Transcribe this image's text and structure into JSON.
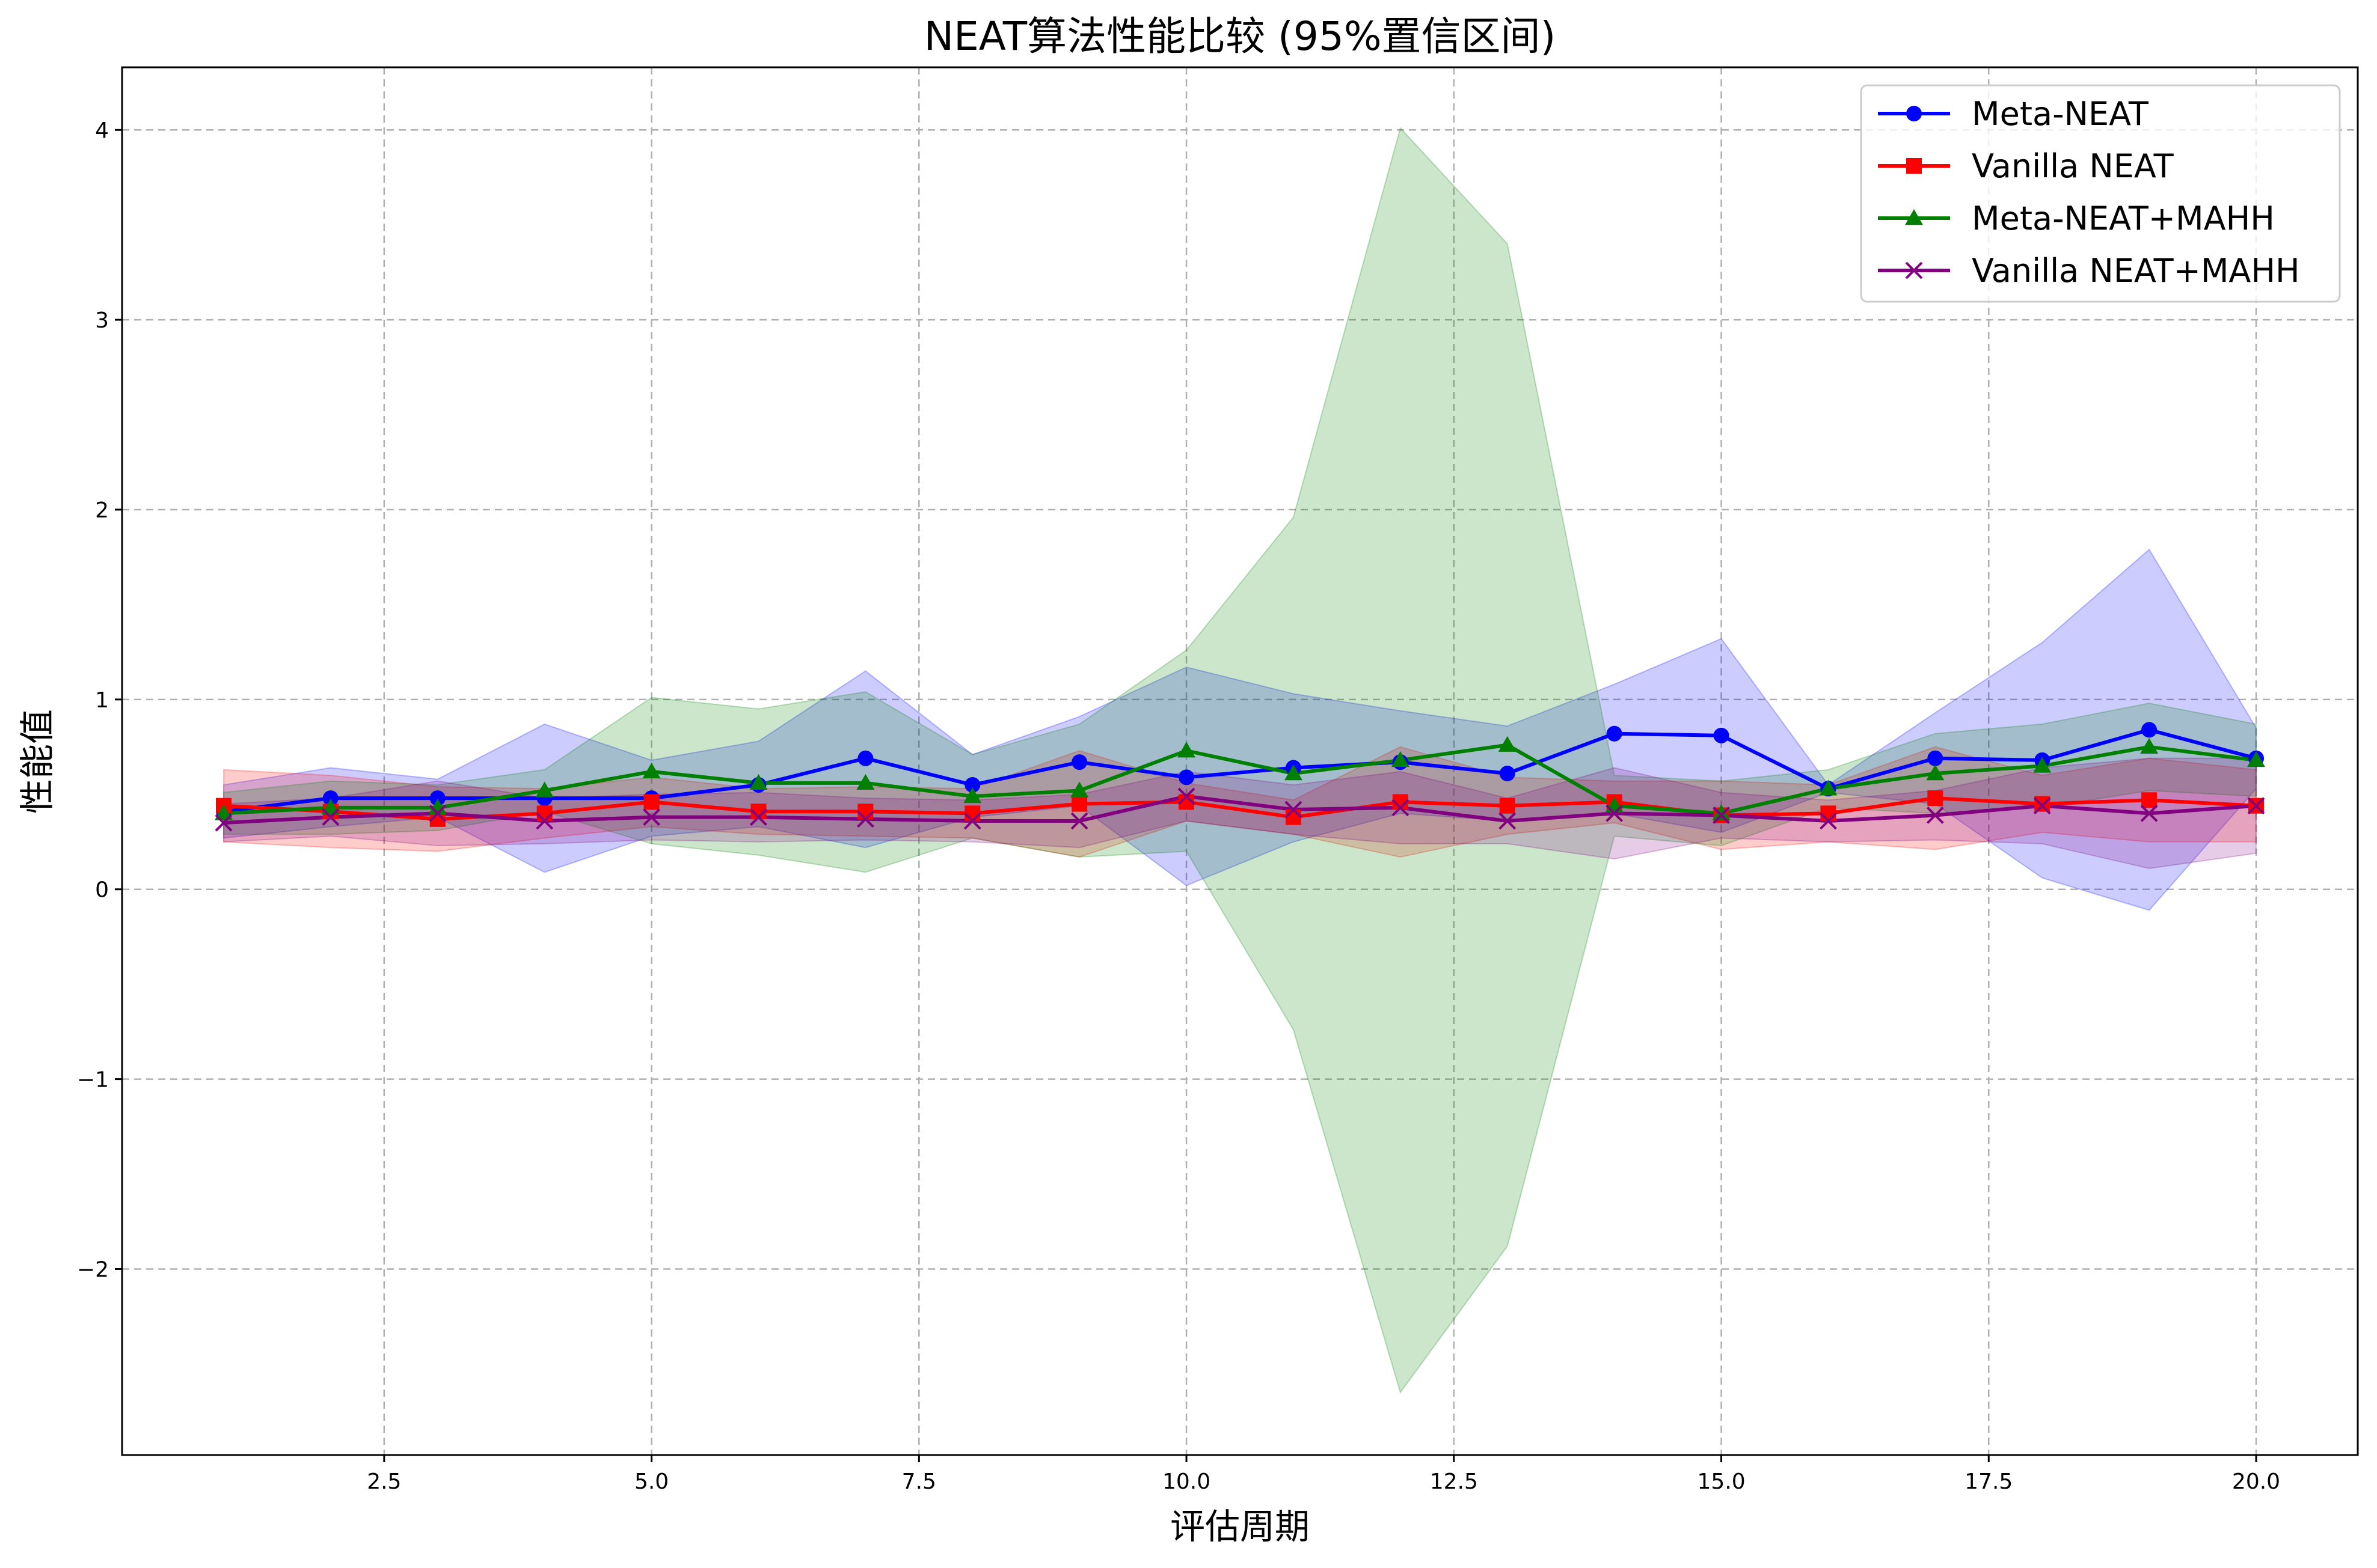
{
  "chart_data": {
    "type": "line",
    "title": "NEAT算法性能比较 (95%置信区间)",
    "xlabel": "评估周期",
    "ylabel": "性能值",
    "xlim": [
      0.05,
      20.95
    ],
    "ylim": [
      -2.98,
      4.33
    ],
    "x_ticks": [
      2.5,
      5.0,
      7.5,
      10.0,
      12.5,
      15.0,
      17.5,
      20.0
    ],
    "x_tick_labels": [
      "2.5",
      "5.0",
      "7.5",
      "10.0",
      "12.5",
      "15.0",
      "17.5",
      "20.0"
    ],
    "y_ticks": [
      -2,
      -1,
      0,
      1,
      2,
      3,
      4
    ],
    "y_tick_labels": [
      "−2",
      "−1",
      "0",
      "1",
      "2",
      "3",
      "4"
    ],
    "grid": true,
    "legend_position": "upper-right",
    "x": [
      1,
      2,
      3,
      4,
      5,
      6,
      7,
      8,
      9,
      10,
      11,
      12,
      13,
      14,
      15,
      16,
      17,
      18,
      19,
      20
    ],
    "series": [
      {
        "name": "Meta-NEAT",
        "color": "#0000ff",
        "marker": "circle",
        "values": [
          0.41,
          0.48,
          0.48,
          0.48,
          0.48,
          0.55,
          0.69,
          0.55,
          0.67,
          0.59,
          0.64,
          0.67,
          0.61,
          0.82,
          0.81,
          0.53,
          0.69,
          0.68,
          0.84,
          0.69
        ],
        "lower": [
          0.27,
          0.33,
          0.38,
          0.09,
          0.28,
          0.33,
          0.22,
          0.38,
          0.44,
          0.02,
          0.25,
          0.4,
          0.36,
          0.4,
          0.3,
          0.51,
          0.45,
          0.06,
          -0.11,
          0.53
        ],
        "upper": [
          0.55,
          0.64,
          0.58,
          0.87,
          0.68,
          0.78,
          1.15,
          0.71,
          0.91,
          1.17,
          1.03,
          0.94,
          0.86,
          1.08,
          1.32,
          0.55,
          0.93,
          1.3,
          1.79,
          0.85
        ]
      },
      {
        "name": "Vanilla NEAT",
        "color": "#ff0000",
        "marker": "square",
        "values": [
          0.44,
          0.41,
          0.37,
          0.4,
          0.46,
          0.41,
          0.41,
          0.4,
          0.45,
          0.46,
          0.38,
          0.46,
          0.44,
          0.46,
          0.39,
          0.4,
          0.48,
          0.45,
          0.47,
          0.44
        ],
        "lower": [
          0.25,
          0.22,
          0.2,
          0.27,
          0.33,
          0.29,
          0.28,
          0.27,
          0.17,
          0.36,
          0.29,
          0.17,
          0.29,
          0.35,
          0.21,
          0.25,
          0.21,
          0.3,
          0.25,
          0.25
        ],
        "upper": [
          0.63,
          0.6,
          0.54,
          0.53,
          0.59,
          0.53,
          0.54,
          0.53,
          0.73,
          0.56,
          0.47,
          0.75,
          0.59,
          0.57,
          0.57,
          0.55,
          0.75,
          0.6,
          0.69,
          0.63
        ]
      },
      {
        "name": "Meta-NEAT+MAHH",
        "color": "#008000",
        "marker": "triangle",
        "values": [
          0.4,
          0.43,
          0.43,
          0.52,
          0.62,
          0.56,
          0.56,
          0.49,
          0.52,
          0.73,
          0.61,
          0.68,
          0.76,
          0.44,
          0.4,
          0.53,
          0.61,
          0.65,
          0.75,
          0.68
        ],
        "lower": [
          0.29,
          0.29,
          0.31,
          0.41,
          0.24,
          0.18,
          0.09,
          0.27,
          0.17,
          0.2,
          -0.74,
          -2.65,
          -1.88,
          0.28,
          0.23,
          0.43,
          0.4,
          0.43,
          0.52,
          0.49
        ],
        "upper": [
          0.51,
          0.57,
          0.55,
          0.63,
          1.01,
          0.95,
          1.04,
          0.71,
          0.87,
          1.26,
          1.96,
          4.01,
          3.4,
          0.6,
          0.57,
          0.63,
          0.82,
          0.87,
          0.98,
          0.87
        ]
      },
      {
        "name": "Vanilla NEAT+MAHH",
        "color": "#800080",
        "marker": "x",
        "values": [
          0.35,
          0.38,
          0.4,
          0.36,
          0.38,
          0.38,
          0.37,
          0.36,
          0.36,
          0.49,
          0.42,
          0.43,
          0.36,
          0.4,
          0.39,
          0.36,
          0.39,
          0.44,
          0.4,
          0.44
        ],
        "lower": [
          0.25,
          0.28,
          0.23,
          0.24,
          0.26,
          0.25,
          0.26,
          0.25,
          0.22,
          0.36,
          0.29,
          0.24,
          0.24,
          0.16,
          0.27,
          0.25,
          0.26,
          0.24,
          0.11,
          0.19
        ],
        "upper": [
          0.45,
          0.48,
          0.57,
          0.48,
          0.5,
          0.51,
          0.48,
          0.47,
          0.5,
          0.62,
          0.55,
          0.62,
          0.48,
          0.64,
          0.51,
          0.47,
          0.52,
          0.64,
          0.69,
          0.69
        ]
      }
    ]
  }
}
